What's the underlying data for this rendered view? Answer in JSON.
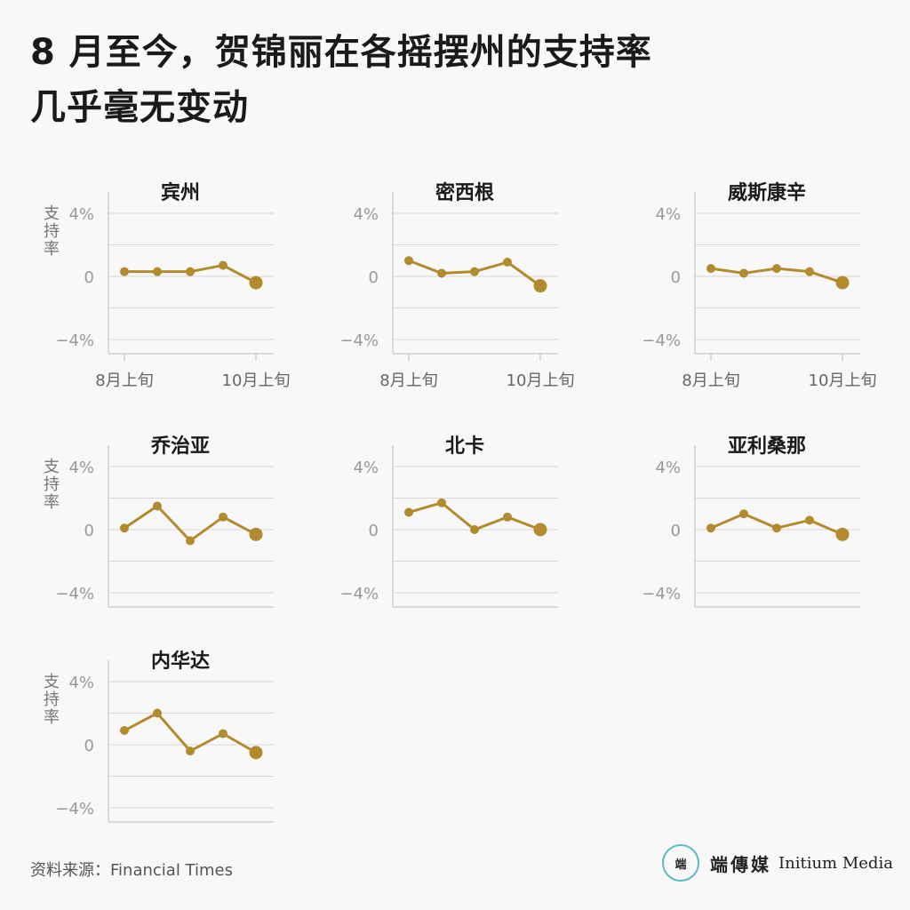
{
  "title": {
    "line1": "8 月至今，贺锦丽在各摇摆州的支持率",
    "line2": "几乎毫无变动"
  },
  "source": "资料来源：Financial Times",
  "logo": {
    "mark": "端",
    "cn": "端傳媒",
    "en": "Initium Media"
  },
  "colors": {
    "line": "#b38a2e",
    "grid": "#d8d8d8",
    "axis": "#bdbdbd",
    "tick": "#999999",
    "label": "#777777"
  },
  "chart_data": [
    {
      "type": "line",
      "title": "宾州",
      "ylabel": "支持率",
      "yticks": [
        "4%",
        "0",
        "−4%"
      ],
      "ylim": [
        -5,
        5
      ],
      "xticklabels": [
        "8月上旬",
        "10月上旬"
      ],
      "values": [
        0.3,
        0.3,
        0.3,
        0.7,
        -0.4
      ]
    },
    {
      "type": "line",
      "title": "密西根",
      "ylabel": "",
      "yticks": [
        "4%",
        "0",
        "−4%"
      ],
      "ylim": [
        -5,
        5
      ],
      "xticklabels": [
        "8月上旬",
        "10月上旬"
      ],
      "values": [
        1.0,
        0.2,
        0.3,
        0.9,
        -0.6
      ]
    },
    {
      "type": "line",
      "title": "威斯康辛",
      "ylabel": "",
      "yticks": [
        "4%",
        "0",
        "−4%"
      ],
      "ylim": [
        -5,
        5
      ],
      "xticklabels": [
        "8月上旬",
        "10月上旬"
      ],
      "values": [
        0.5,
        0.2,
        0.5,
        0.3,
        -0.4
      ]
    },
    {
      "type": "line",
      "title": "乔治亚",
      "ylabel": "支持率",
      "yticks": [
        "4%",
        "0",
        "−4%"
      ],
      "ylim": [
        -5,
        5
      ],
      "xticklabels": [],
      "values": [
        0.1,
        1.5,
        -0.7,
        0.8,
        -0.3
      ]
    },
    {
      "type": "line",
      "title": "北卡",
      "ylabel": "",
      "yticks": [
        "4%",
        "0",
        "−4%"
      ],
      "ylim": [
        -5,
        5
      ],
      "xticklabels": [],
      "values": [
        1.1,
        1.7,
        0.0,
        0.8,
        0.0
      ]
    },
    {
      "type": "line",
      "title": "亚利桑那",
      "ylabel": "",
      "yticks": [
        "4%",
        "0",
        "−4%"
      ],
      "ylim": [
        -5,
        5
      ],
      "xticklabels": [],
      "values": [
        0.1,
        1.0,
        0.1,
        0.6,
        -0.3
      ]
    },
    {
      "type": "line",
      "title": "内华达",
      "ylabel": "支持率",
      "yticks": [
        "4%",
        "0",
        "−4%"
      ],
      "ylim": [
        -5,
        5
      ],
      "xticklabels": [],
      "values": [
        0.9,
        2.0,
        -0.4,
        0.7,
        -0.5
      ]
    }
  ]
}
